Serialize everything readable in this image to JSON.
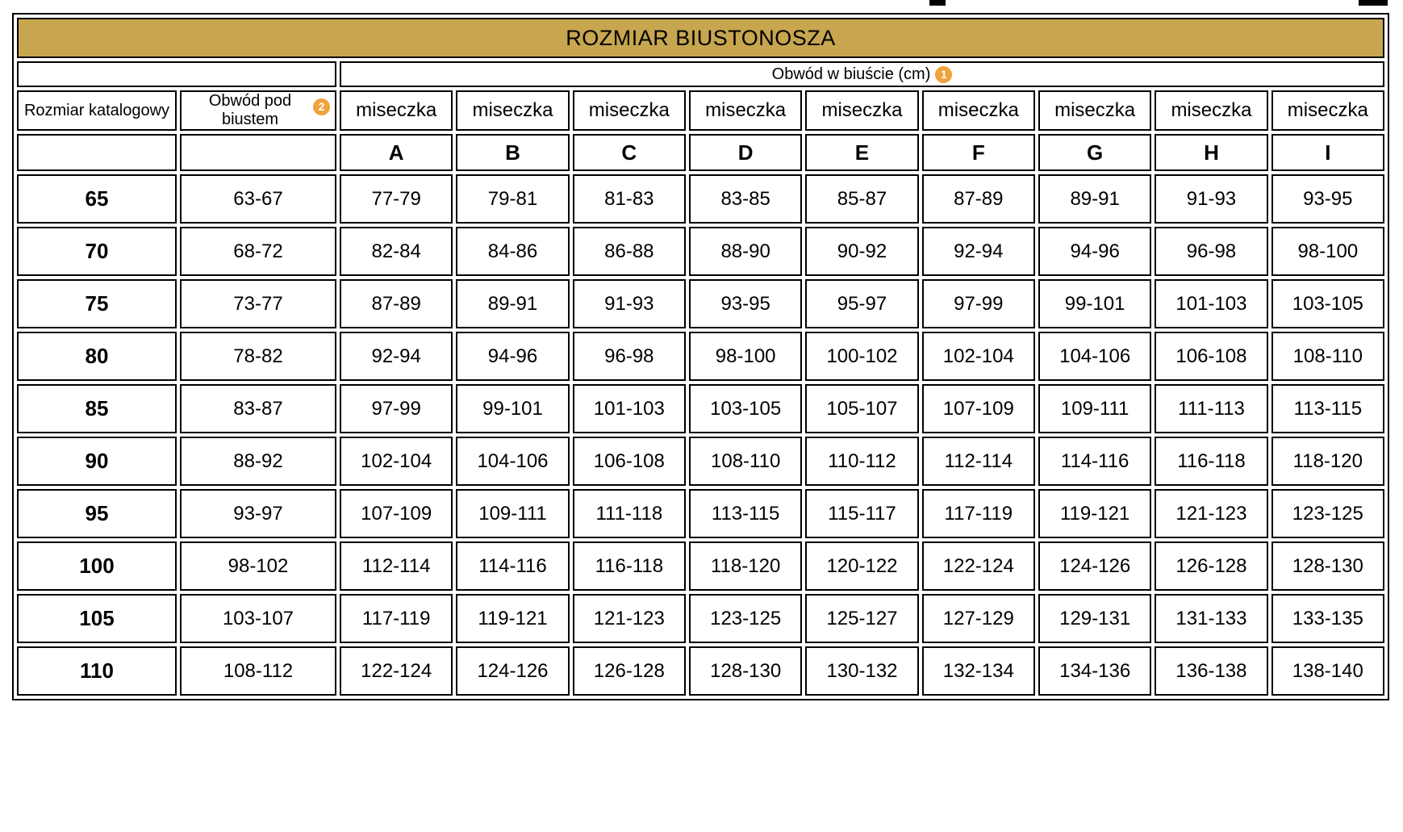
{
  "colors": {
    "banner_bg": "#C7A64F",
    "badge_bg": "#F0A23C",
    "border": "#000000",
    "cell_bg": "#FFFFFF"
  },
  "chart_data": {
    "type": "table",
    "title": "ROZMIAR BIUSTONOSZA",
    "group_header": {
      "label": "Obwód w biuście (cm)",
      "badge": "1"
    },
    "headers": {
      "catalog_size": "Rozmiar katalogowy",
      "underbust_label": "Obwód pod biustem",
      "underbust_badge": "2",
      "cup": "miseczka",
      "cup_letters": [
        "A",
        "B",
        "C",
        "D",
        "E",
        "F",
        "G",
        "H",
        "I"
      ]
    },
    "rows": [
      {
        "size": "65",
        "underbust": "63-67",
        "cups": [
          "77-79",
          "79-81",
          "81-83",
          "83-85",
          "85-87",
          "87-89",
          "89-91",
          "91-93",
          "93-95"
        ]
      },
      {
        "size": "70",
        "underbust": "68-72",
        "cups": [
          "82-84",
          "84-86",
          "86-88",
          "88-90",
          "90-92",
          "92-94",
          "94-96",
          "96-98",
          "98-100"
        ]
      },
      {
        "size": "75",
        "underbust": "73-77",
        "cups": [
          "87-89",
          "89-91",
          "91-93",
          "93-95",
          "95-97",
          "97-99",
          "99-101",
          "101-103",
          "103-105"
        ]
      },
      {
        "size": "80",
        "underbust": "78-82",
        "cups": [
          "92-94",
          "94-96",
          "96-98",
          "98-100",
          "100-102",
          "102-104",
          "104-106",
          "106-108",
          "108-110"
        ]
      },
      {
        "size": "85",
        "underbust": "83-87",
        "cups": [
          "97-99",
          "99-101",
          "101-103",
          "103-105",
          "105-107",
          "107-109",
          "109-111",
          "111-113",
          "113-115"
        ]
      },
      {
        "size": "90",
        "underbust": "88-92",
        "cups": [
          "102-104",
          "104-106",
          "106-108",
          "108-110",
          "110-112",
          "112-114",
          "114-116",
          "116-118",
          "118-120"
        ]
      },
      {
        "size": "95",
        "underbust": "93-97",
        "cups": [
          "107-109",
          "109-111",
          "111-118",
          "113-115",
          "115-117",
          "117-119",
          "119-121",
          "121-123",
          "123-125"
        ]
      },
      {
        "size": "100",
        "underbust": "98-102",
        "cups": [
          "112-114",
          "114-116",
          "116-118",
          "118-120",
          "120-122",
          "122-124",
          "124-126",
          "126-128",
          "128-130"
        ]
      },
      {
        "size": "105",
        "underbust": "103-107",
        "cups": [
          "117-119",
          "119-121",
          "121-123",
          "123-125",
          "125-127",
          "127-129",
          "129-131",
          "131-133",
          "133-135"
        ]
      },
      {
        "size": "110",
        "underbust": "108-112",
        "cups": [
          "122-124",
          "124-126",
          "126-128",
          "128-130",
          "130-132",
          "132-134",
          "134-136",
          "136-138",
          "138-140"
        ]
      }
    ]
  }
}
